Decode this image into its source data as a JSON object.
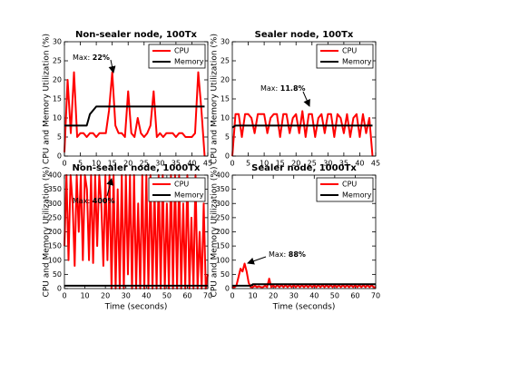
{
  "chart_data": [
    {
      "type": "line",
      "title": "Non-sealer node, 100Tx",
      "ylabel": "CPU and Memory Utilization (%)",
      "x": [
        0,
        1,
        2,
        3,
        4,
        5,
        6,
        7,
        8,
        9,
        10,
        11,
        12,
        13,
        14,
        15,
        16,
        17,
        18,
        19,
        20,
        21,
        22,
        23,
        24,
        25,
        26,
        27,
        28,
        29,
        30,
        31,
        32,
        33,
        34,
        35,
        36,
        37,
        38,
        39,
        40,
        41,
        42,
        43,
        44
      ],
      "series": [
        {
          "name": "CPU",
          "color": "#ff0000",
          "values": [
            1,
            20,
            6,
            22,
            5,
            6,
            6,
            5,
            6,
            6,
            5,
            6,
            6,
            6,
            12,
            22,
            8,
            6,
            6,
            5,
            17,
            6,
            5,
            10,
            6,
            5,
            6,
            8,
            17,
            5,
            6,
            5,
            6,
            6,
            6,
            5,
            6,
            6,
            5,
            5,
            5,
            6,
            22,
            12,
            0
          ]
        },
        {
          "name": "Memory",
          "color": "#000000",
          "values": [
            8,
            8,
            8,
            8,
            8,
            8,
            8,
            8,
            11,
            12,
            13,
            13,
            13,
            13,
            13,
            13,
            13,
            13,
            13,
            13,
            13,
            13,
            13,
            13,
            13,
            13,
            13,
            13,
            13,
            13,
            13,
            13,
            13,
            13,
            13,
            13,
            13,
            13,
            13,
            13,
            13,
            13,
            13,
            13,
            13
          ]
        }
      ],
      "xlim": [
        0,
        45
      ],
      "xticks": [
        0,
        5,
        10,
        15,
        20,
        25,
        30,
        35,
        40,
        45
      ],
      "ylim": [
        0,
        30
      ],
      "yticks": [
        0,
        5,
        10,
        15,
        20,
        25,
        30
      ],
      "annotation": {
        "label": "Max:",
        "value": "22%"
      },
      "legend": "upper right"
    },
    {
      "type": "line",
      "title": "Sealer node, 100Tx",
      "ylabel": "CPU and Memory Utilization (%)",
      "x": [
        0,
        1,
        2,
        3,
        4,
        5,
        6,
        7,
        8,
        9,
        10,
        11,
        12,
        13,
        14,
        15,
        16,
        17,
        18,
        19,
        20,
        21,
        22,
        23,
        24,
        25,
        26,
        27,
        28,
        29,
        30,
        31,
        32,
        33,
        34,
        35,
        36,
        37,
        38,
        39,
        40,
        41,
        42,
        43,
        44
      ],
      "series": [
        {
          "name": "CPU",
          "color": "#ff0000",
          "values": [
            0,
            11,
            11,
            5,
            11,
            11,
            10,
            6,
            11,
            11,
            11,
            6,
            10,
            11,
            11,
            5,
            11,
            11,
            6,
            10,
            11,
            6,
            11.8,
            5,
            11,
            11,
            5,
            10,
            11,
            6,
            11,
            11,
            5,
            11,
            10,
            6,
            11,
            5,
            10,
            11,
            5,
            11,
            6,
            10,
            0
          ]
        },
        {
          "name": "Memory",
          "color": "#000000",
          "values": [
            7.5,
            8,
            8,
            8,
            8,
            8,
            8,
            8,
            8,
            8,
            8,
            8,
            8,
            8,
            8,
            8,
            8,
            8,
            8,
            8,
            8,
            8,
            8,
            8,
            8,
            8,
            8,
            8,
            8,
            8,
            8,
            8,
            8,
            8,
            8,
            8,
            8,
            8,
            8,
            8,
            8,
            8,
            8,
            8,
            8
          ]
        }
      ],
      "xlim": [
        0,
        45
      ],
      "xticks": [
        0,
        5,
        10,
        15,
        20,
        25,
        30,
        35,
        40,
        45
      ],
      "ylim": [
        0,
        30
      ],
      "yticks": [
        0,
        5,
        10,
        15,
        20,
        25,
        30
      ],
      "annotation": {
        "label": "Max:",
        "value": "11.8%"
      },
      "legend": "upper right"
    },
    {
      "type": "line",
      "title": "Non-sealer node, 1000Tx",
      "xlabel": "Time (seconds)",
      "ylabel": "CPU and Memory Utilization (%)",
      "x": [
        0,
        1,
        2,
        3,
        4,
        5,
        6,
        7,
        8,
        9,
        10,
        11,
        12,
        13,
        14,
        15,
        16,
        17,
        18,
        19,
        20,
        21,
        22,
        23,
        24,
        25,
        26,
        27,
        28,
        29,
        30,
        31,
        32,
        33,
        34,
        35,
        36,
        37,
        38,
        39,
        40,
        41,
        42,
        43,
        44,
        45,
        46,
        47,
        48,
        49,
        50,
        51,
        52,
        53,
        54,
        55,
        56,
        57,
        58,
        59,
        60,
        61,
        62,
        63,
        64,
        65,
        66,
        67,
        68,
        69,
        70
      ],
      "series": [
        {
          "name": "CPU",
          "color": "#ff0000",
          "values": [
            150,
            400,
            100,
            400,
            300,
            80,
            400,
            200,
            400,
            100,
            400,
            350,
            100,
            400,
            90,
            400,
            150,
            400,
            300,
            80,
            400,
            100,
            400,
            0,
            400,
            0,
            350,
            0,
            400,
            0,
            400,
            50,
            400,
            0,
            400,
            0,
            300,
            0,
            400,
            0,
            400,
            0,
            400,
            0,
            350,
            0,
            400,
            0,
            400,
            0,
            300,
            0,
            400,
            0,
            400,
            0,
            400,
            0,
            300,
            0,
            400,
            0,
            250,
            0,
            400,
            0,
            200,
            0,
            300,
            0,
            50
          ]
        },
        {
          "name": "Memory",
          "color": "#000000",
          "values": [
            10,
            10,
            10,
            10,
            10,
            10,
            10,
            10,
            10,
            10,
            10,
            10,
            10,
            10,
            10,
            10,
            10,
            10,
            10,
            10,
            10,
            10,
            10,
            10,
            10,
            10,
            10,
            10,
            10,
            10,
            10,
            10,
            10,
            10,
            10,
            10,
            10,
            10,
            10,
            10,
            10,
            10,
            10,
            10,
            10,
            10,
            10,
            10,
            10,
            10,
            10,
            10,
            10,
            10,
            10,
            10,
            10,
            10,
            10,
            10,
            10,
            10,
            10,
            10,
            10,
            10,
            10,
            10,
            10,
            10,
            10
          ]
        }
      ],
      "xlim": [
        0,
        70
      ],
      "xticks": [
        0,
        10,
        20,
        30,
        40,
        50,
        60,
        70
      ],
      "ylim": [
        0,
        400
      ],
      "yticks": [
        0,
        50,
        100,
        150,
        200,
        250,
        300,
        350,
        400
      ],
      "annotation": {
        "label": "Max:",
        "value": "400%"
      },
      "legend": "upper right"
    },
    {
      "type": "line",
      "title": "Sealer node, 1000Tx",
      "xlabel": "Time (seconds)",
      "ylabel": "CPU and Memory Utilization (%)",
      "x": [
        0,
        1,
        2,
        3,
        4,
        5,
        6,
        7,
        8,
        9,
        10,
        11,
        12,
        13,
        14,
        15,
        16,
        17,
        18,
        19,
        20,
        21,
        22,
        23,
        24,
        25,
        26,
        27,
        28,
        29,
        30,
        31,
        32,
        33,
        34,
        35,
        36,
        37,
        38,
        39,
        40,
        41,
        42,
        43,
        44,
        45,
        46,
        47,
        48,
        49,
        50,
        51,
        52,
        53,
        54,
        55,
        56,
        57,
        58,
        59,
        60,
        61,
        62,
        63,
        64,
        65,
        66,
        67,
        68,
        69,
        70
      ],
      "series": [
        {
          "name": "CPU",
          "color": "#ff0000",
          "values": [
            5,
            5,
            10,
            40,
            70,
            60,
            88,
            60,
            20,
            5,
            5,
            10,
            5,
            8,
            5,
            5,
            10,
            5,
            35,
            5,
            10,
            5,
            12,
            5,
            12,
            5,
            12,
            5,
            12,
            5,
            12,
            5,
            12,
            5,
            12,
            5,
            12,
            5,
            12,
            5,
            12,
            5,
            12,
            5,
            12,
            5,
            12,
            5,
            12,
            5,
            12,
            5,
            12,
            5,
            12,
            5,
            12,
            5,
            12,
            5,
            12,
            5,
            12,
            5,
            12,
            5,
            12,
            5,
            12,
            5,
            5
          ]
        },
        {
          "name": "Memory",
          "color": "#000000",
          "values": [
            10,
            10,
            10,
            10,
            10,
            10,
            10,
            10,
            10,
            10,
            15,
            15,
            15,
            15,
            15,
            15,
            15,
            15,
            15,
            15,
            15,
            15,
            15,
            15,
            15,
            15,
            15,
            15,
            15,
            15,
            15,
            15,
            15,
            15,
            15,
            15,
            15,
            15,
            15,
            15,
            15,
            15,
            15,
            15,
            15,
            15,
            15,
            15,
            15,
            15,
            15,
            15,
            15,
            15,
            15,
            15,
            15,
            15,
            15,
            15,
            15,
            15,
            15,
            15,
            15,
            15,
            15,
            15,
            15,
            15,
            15
          ]
        }
      ],
      "xlim": [
        0,
        70
      ],
      "xticks": [
        0,
        10,
        20,
        30,
        40,
        50,
        60,
        70
      ],
      "ylim": [
        0,
        400
      ],
      "yticks": [
        0,
        50,
        100,
        150,
        200,
        250,
        300,
        350,
        400
      ],
      "annotation": {
        "label": "Max:",
        "value": "88%"
      },
      "legend": "upper right"
    }
  ]
}
